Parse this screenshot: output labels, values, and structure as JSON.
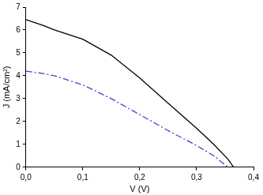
{
  "chart_data": {
    "type": "line",
    "x_label": "V (V)",
    "y_label": "J (mA/cm²)",
    "x": [
      0,
      0.03,
      0.05,
      0.1,
      0.15,
      0.2,
      0.25,
      0.3,
      0.33,
      0.355,
      0.365
    ],
    "series": [
      {
        "color": "#000000",
        "line_style": "solid",
        "values": [
          6.45,
          6.2,
          6.0,
          5.6,
          4.9,
          3.9,
          2.8,
          1.7,
          1.0,
          0.35,
          0.0
        ]
      },
      {
        "color": "#6633cc",
        "line_style": "dashdot",
        "values": [
          4.2,
          4.1,
          4.0,
          3.6,
          3.0,
          2.3,
          1.6,
          0.95,
          0.5,
          0.0,
          null
        ]
      }
    ],
    "xlim": [
      0,
      0.4
    ],
    "xticks": [
      {
        "value": 0,
        "label": "0,0"
      },
      {
        "value": 0.1,
        "label": "0,1"
      },
      {
        "value": 0.2,
        "label": "0,2"
      },
      {
        "value": 0.3,
        "label": "0,3"
      },
      {
        "value": 0.4,
        "label": "0,4"
      }
    ],
    "ylim": [
      0,
      7
    ],
    "yticks": [
      0,
      1,
      2,
      3,
      4,
      5,
      6,
      7
    ],
    "grid": false
  }
}
